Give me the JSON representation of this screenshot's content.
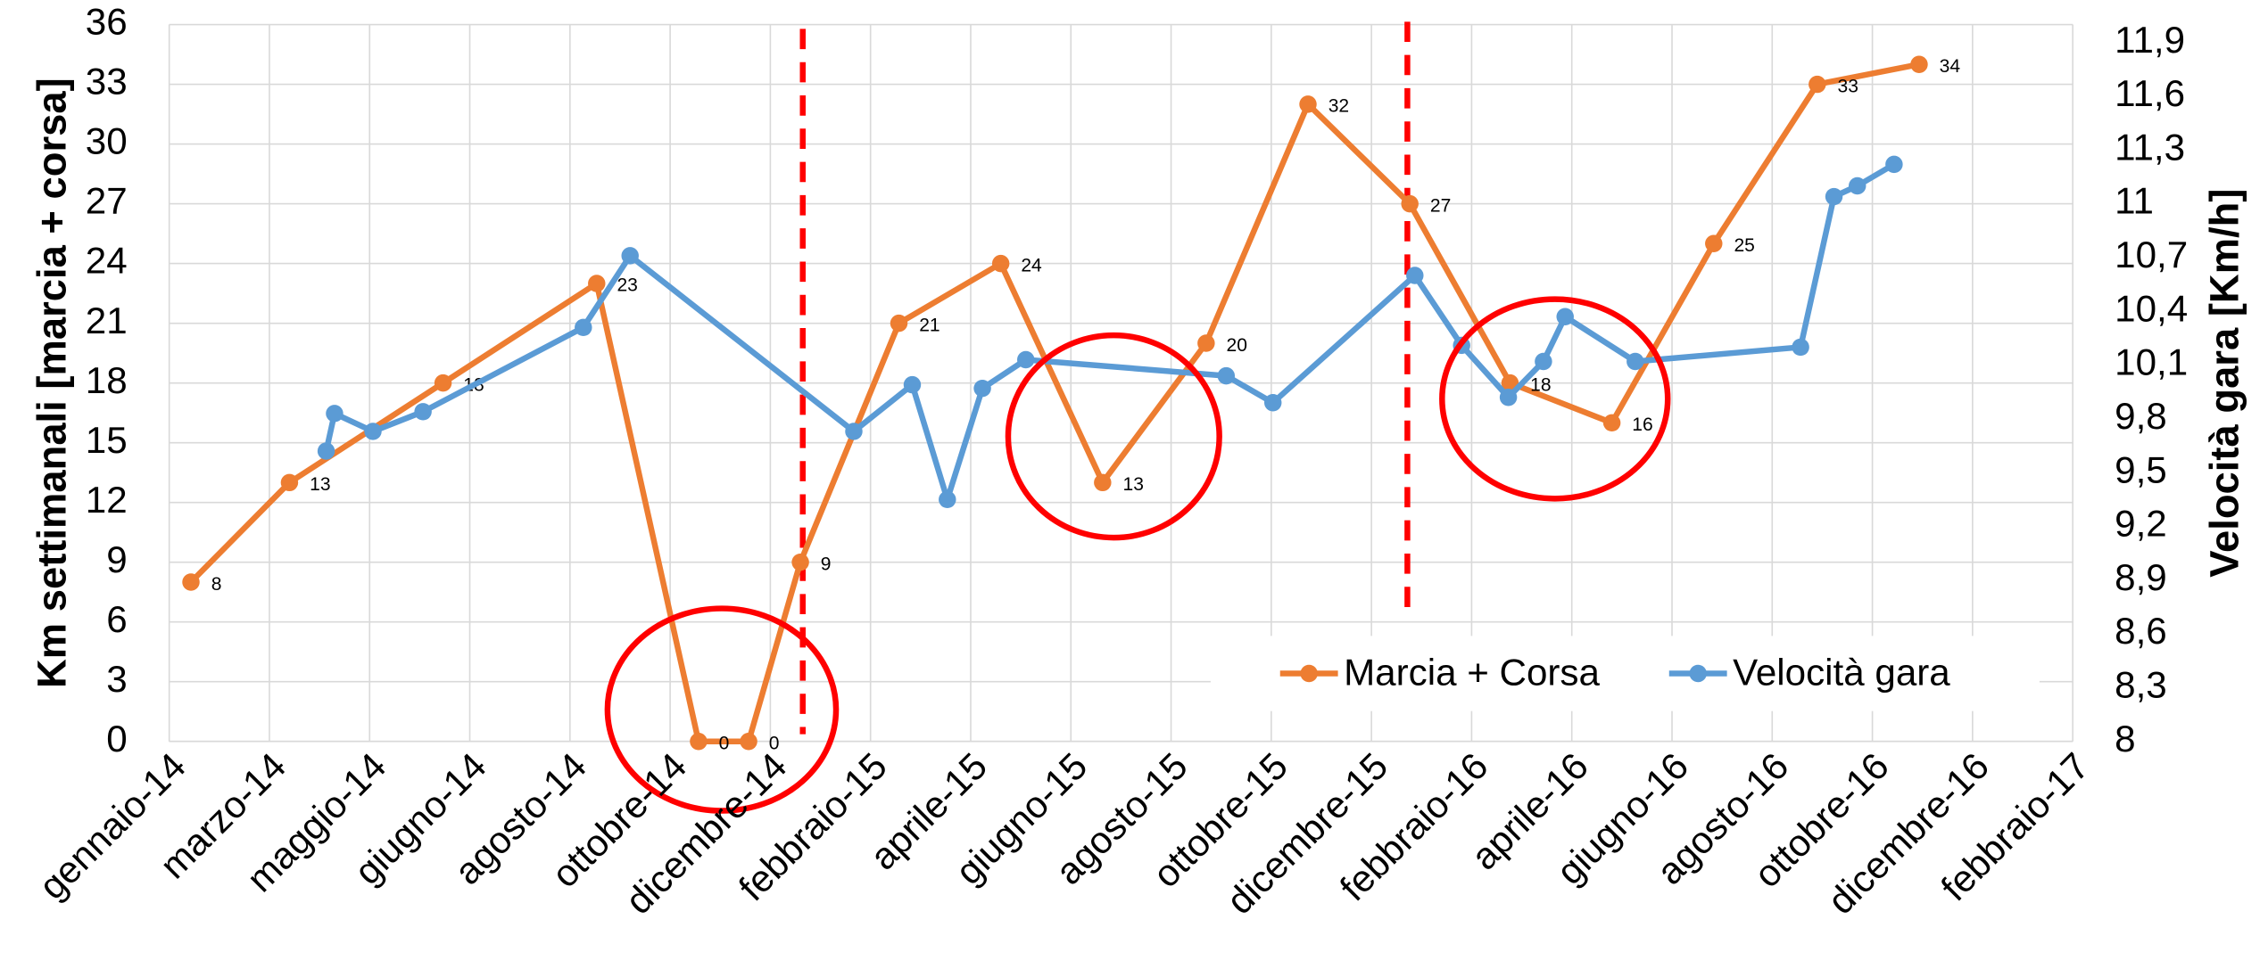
{
  "chart_data": {
    "type": "line",
    "y_label": "Km settimanali [marcia + corsa]",
    "y2_label": "Velocità gara [Km/h]",
    "xlim": [
      "2014-01-01",
      "2017-02-14"
    ],
    "xticks": [
      {
        "value": "2014-01-01",
        "label": "gennaio-14"
      },
      {
        "value": "2014-03-02",
        "label": "marzo-14"
      },
      {
        "value": "2014-05-01",
        "label": "maggio-14"
      },
      {
        "value": "2014-06-30",
        "label": "giugno-14"
      },
      {
        "value": "2014-08-29",
        "label": "agosto-14"
      },
      {
        "value": "2014-10-28",
        "label": "ottobre-14"
      },
      {
        "value": "2014-12-27",
        "label": "dicembre-14"
      },
      {
        "value": "2015-02-25",
        "label": "febbraio-15"
      },
      {
        "value": "2015-04-26",
        "label": "aprile-15"
      },
      {
        "value": "2015-06-25",
        "label": "giugno-15"
      },
      {
        "value": "2015-08-24",
        "label": "agosto-15"
      },
      {
        "value": "2015-10-23",
        "label": "ottobre-15"
      },
      {
        "value": "2015-12-22",
        "label": "dicembre-15"
      },
      {
        "value": "2016-02-20",
        "label": "febbraio-16"
      },
      {
        "value": "2016-04-20",
        "label": "aprile-16"
      },
      {
        "value": "2016-06-19",
        "label": "giugno-16"
      },
      {
        "value": "2016-08-18",
        "label": "agosto-16"
      },
      {
        "value": "2016-10-17",
        "label": "ottobre-16"
      },
      {
        "value": "2016-12-16",
        "label": "dicembre-16"
      },
      {
        "value": "2017-02-14",
        "label": "febbraio-17"
      }
    ],
    "ylim": [
      0,
      36
    ],
    "yticks": [
      0,
      3,
      6,
      9,
      12,
      15,
      18,
      21,
      24,
      27,
      30,
      33,
      36
    ],
    "y2lim": [
      8,
      12
    ],
    "y2ticks": [
      8,
      {
        "value": 8.3,
        "label": "8,3"
      },
      {
        "value": 8.6,
        "label": "8,6"
      },
      {
        "value": 8.9,
        "label": "8,9"
      },
      {
        "value": 9.2,
        "label": "9,2"
      },
      {
        "value": 9.5,
        "label": "9,5"
      },
      {
        "value": 9.8,
        "label": "9,8"
      },
      {
        "value": 10.1,
        "label": "10,1"
      },
      {
        "value": 10.4,
        "label": "10,4"
      },
      {
        "value": 10.7,
        "label": "10,7"
      },
      11,
      {
        "value": 11.3,
        "label": "11,3"
      },
      {
        "value": 11.6,
        "label": "11,6"
      },
      {
        "value": 11.9,
        "label": "11,9"
      }
    ],
    "grid": true,
    "legend": "bottom-right",
    "series": [
      {
        "name": "Marcia + Corsa",
        "color": "#ed7d31",
        "data_labels": true,
        "x": [
          "2014-01-14",
          "2014-03-14",
          "2014-06-14",
          "2014-09-14",
          "2014-11-14",
          "2014-12-14",
          "2015-01-14",
          "2015-03-14",
          "2015-05-14",
          "2015-07-14",
          "2015-09-14",
          "2015-11-14",
          "2016-01-14",
          "2016-03-14",
          "2016-05-14",
          "2016-07-14",
          "2016-09-14",
          "2016-11-14"
        ],
        "values": [
          8,
          13,
          18,
          23,
          0,
          0,
          9,
          21,
          24,
          13,
          20,
          32,
          27,
          18,
          16,
          25,
          33,
          34
        ]
      },
      {
        "name": "Velocità gara",
        "color": "#5b9bd5",
        "axis": "y2",
        "data_labels": false,
        "x": [
          "2014-04-05",
          "2014-04-10",
          "2014-05-03",
          "2014-06-02",
          "2014-09-06",
          "2014-10-04",
          "2015-02-15",
          "2015-03-22",
          "2015-04-12",
          "2015-05-03",
          "2015-05-29",
          "2015-09-26",
          "2015-10-24",
          "2016-01-17",
          "2016-02-14",
          "2016-03-13",
          "2016-04-03",
          "2016-04-16",
          "2016-05-28",
          "2016-09-04",
          "2016-09-24",
          "2016-10-08",
          "2016-10-30"
        ],
        "values": [
          9.62,
          9.83,
          9.73,
          9.84,
          10.31,
          10.71,
          9.73,
          9.99,
          9.35,
          9.97,
          10.13,
          10.04,
          9.89,
          10.6,
          10.21,
          9.92,
          10.12,
          10.37,
          10.12,
          10.2,
          11.04,
          11.1,
          11.22
        ]
      }
    ]
  }
}
